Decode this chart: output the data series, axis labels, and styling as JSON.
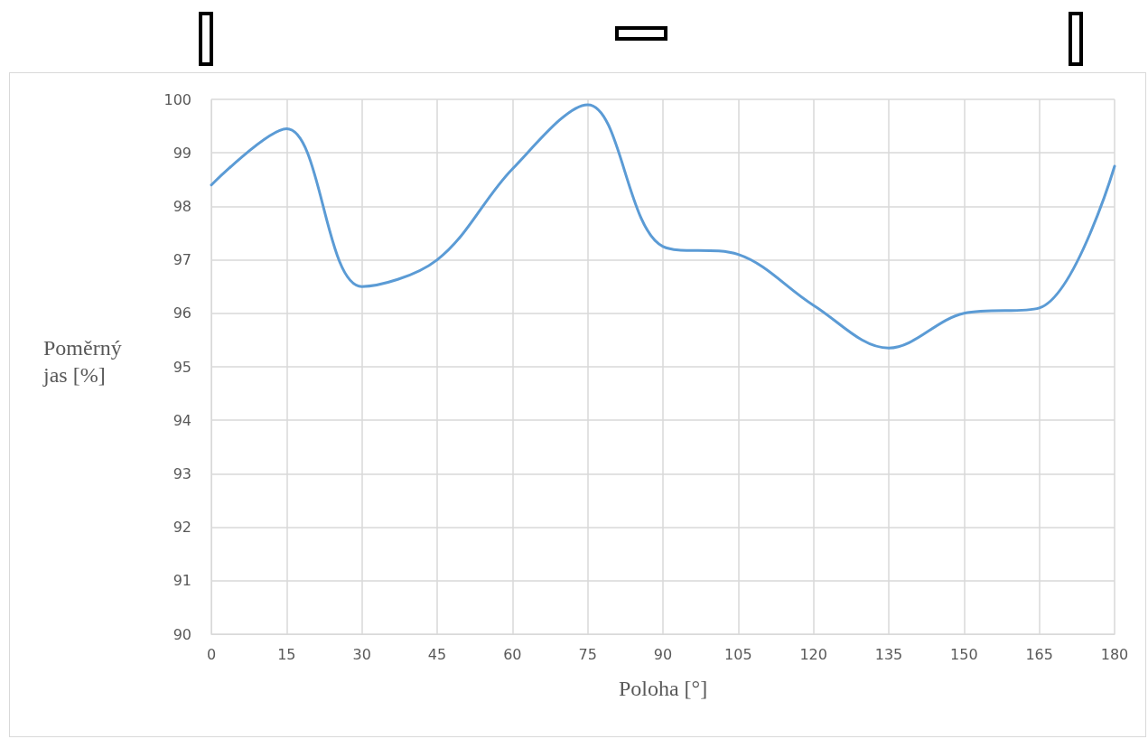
{
  "chart_data": {
    "type": "line",
    "xlabel": "Poloha [°]",
    "ylabel": "Poměrný\njas [%]",
    "x": [
      0,
      15,
      30,
      45,
      60,
      75,
      90,
      105,
      120,
      135,
      150,
      165,
      180
    ],
    "series": [
      {
        "color": "#5b9bd5",
        "values": [
          98.4,
          99.45,
          96.5,
          97.0,
          98.7,
          99.9,
          97.25,
          97.1,
          96.15,
          95.35,
          96.0,
          96.1,
          98.75
        ]
      }
    ],
    "xlim": [
      0,
      180
    ],
    "xticks": [
      0,
      15,
      30,
      45,
      60,
      75,
      90,
      105,
      120,
      135,
      150,
      165,
      180
    ],
    "ylim": [
      90,
      100
    ],
    "yticks": [
      90,
      91,
      92,
      93,
      94,
      95,
      96,
      97,
      98,
      99,
      100
    ],
    "grid": true,
    "marker": "none",
    "line_style": "solid"
  }
}
